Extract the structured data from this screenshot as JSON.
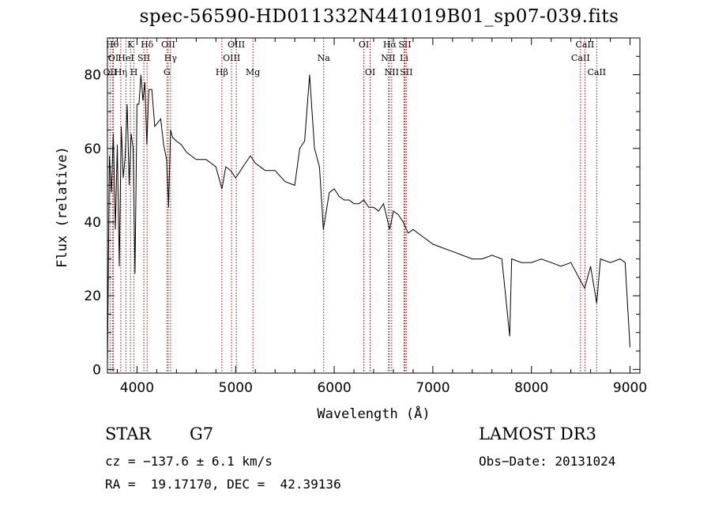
{
  "chart_data": {
    "type": "line",
    "title": "spec-56590-HD011332N441019B01_sp07-039.fits",
    "xlabel": "Wavelength (Å)",
    "ylabel": "Flux (relative)",
    "xlim": [
      3700,
      9100
    ],
    "ylim": [
      -1,
      90
    ],
    "xticks": [
      4000,
      5000,
      6000,
      7000,
      8000,
      9000
    ],
    "yticks": [
      0,
      20,
      40,
      60,
      80
    ],
    "grid": false,
    "series": [
      {
        "name": "spectrum",
        "x": [
          3700,
          3720,
          3740,
          3760,
          3780,
          3800,
          3820,
          3840,
          3860,
          3880,
          3900,
          3920,
          3940,
          3960,
          3980,
          4000,
          4020,
          4040,
          4060,
          4080,
          4100,
          4120,
          4150,
          4180,
          4210,
          4240,
          4270,
          4300,
          4320,
          4340,
          4360,
          4400,
          4450,
          4500,
          4550,
          4600,
          4650,
          4700,
          4750,
          4800,
          4861,
          4900,
          4950,
          5000,
          5050,
          5100,
          5150,
          5200,
          5300,
          5400,
          5500,
          5600,
          5650,
          5700,
          5750,
          5800,
          5850,
          5890,
          5950,
          6000,
          6050,
          6100,
          6150,
          6200,
          6250,
          6300,
          6350,
          6400,
          6450,
          6500,
          6563,
          6600,
          6650,
          6700,
          6750,
          6800,
          6900,
          7000,
          7100,
          7200,
          7300,
          7400,
          7500,
          7600,
          7700,
          7780,
          7800,
          7900,
          8000,
          8100,
          8200,
          8300,
          8400,
          8500,
          8540,
          8600,
          8662,
          8700,
          8800,
          8900,
          8950,
          9000
        ],
        "values": [
          0,
          58,
          48,
          64,
          38,
          61,
          28,
          66,
          52,
          58,
          72,
          50,
          64,
          60,
          26,
          72,
          72,
          80,
          73,
          78,
          61,
          76,
          76,
          66,
          67,
          68,
          61,
          57,
          44,
          65,
          63,
          62,
          61,
          59,
          58,
          57,
          57,
          57,
          56,
          55,
          49,
          55,
          54,
          52,
          54,
          56,
          58,
          56,
          54,
          54,
          51,
          50,
          60,
          62,
          80,
          60,
          55,
          38,
          48,
          49,
          47,
          46,
          46,
          45,
          45,
          46,
          44,
          44,
          43,
          45,
          38,
          43,
          42,
          40,
          37,
          38,
          36,
          34,
          33,
          32,
          31,
          30,
          30,
          31,
          30,
          9,
          30,
          29,
          29,
          30,
          29,
          28,
          29,
          24,
          22,
          28,
          18,
          30,
          29,
          30,
          29,
          6
        ],
        "color": "#000000"
      }
    ],
    "spectral_lines": [
      {
        "name": "OII",
        "x": 3727,
        "row": 2
      },
      {
        "name": "Hθ",
        "x": 3750,
        "row": 0
      },
      {
        "name": "OI",
        "x": 3760,
        "row": 1
      },
      {
        "name": "Hη",
        "x": 3835,
        "row": 2
      },
      {
        "name": "HeI",
        "x": 3888,
        "row": 1
      },
      {
        "name": "K",
        "x": 3934,
        "row": 0
      },
      {
        "name": "H",
        "x": 3969,
        "row": 2
      },
      {
        "name": "SII",
        "x": 4069,
        "row": 1
      },
      {
        "name": "Hδ",
        "x": 4102,
        "row": 0
      },
      {
        "name": "OII",
        "x": 4317,
        "row": 0
      },
      {
        "name": "Hγ",
        "x": 4340,
        "row": 1
      },
      {
        "name": "G",
        "x": 4304,
        "row": 2
      },
      {
        "name": "Hβ",
        "x": 4861,
        "row": 2
      },
      {
        "name": "OIII",
        "x": 4959,
        "row": 1
      },
      {
        "name": "OIII",
        "x": 5007,
        "row": 0
      },
      {
        "name": "Mg",
        "x": 5175,
        "row": 2
      },
      {
        "name": "Na",
        "x": 5893,
        "row": 1
      },
      {
        "name": "OI",
        "x": 6300,
        "row": 0
      },
      {
        "name": "OI",
        "x": 6364,
        "row": 2
      },
      {
        "name": "NII",
        "x": 6548,
        "row": 1
      },
      {
        "name": "Hα",
        "x": 6563,
        "row": 0
      },
      {
        "name": "NII",
        "x": 6583,
        "row": 2
      },
      {
        "name": "Li",
        "x": 6708,
        "row": 1
      },
      {
        "name": "SII",
        "x": 6716,
        "row": 0
      },
      {
        "name": "SII",
        "x": 6731,
        "row": 2
      },
      {
        "name": "CaII",
        "x": 8498,
        "row": 1
      },
      {
        "name": "CaII",
        "x": 8542,
        "row": 0
      },
      {
        "name": "CaII",
        "x": 8662,
        "row": 2
      }
    ],
    "line_color": "#c00000"
  },
  "info": {
    "class": "STAR",
    "subclass": "G7",
    "survey": "LAMOST DR3",
    "cz": "cz = −137.6 ± 6.1 km/s",
    "obs_date": "Obs−Date: 20131024",
    "coords": "RA =  19.17170, DEC =  42.39136"
  }
}
